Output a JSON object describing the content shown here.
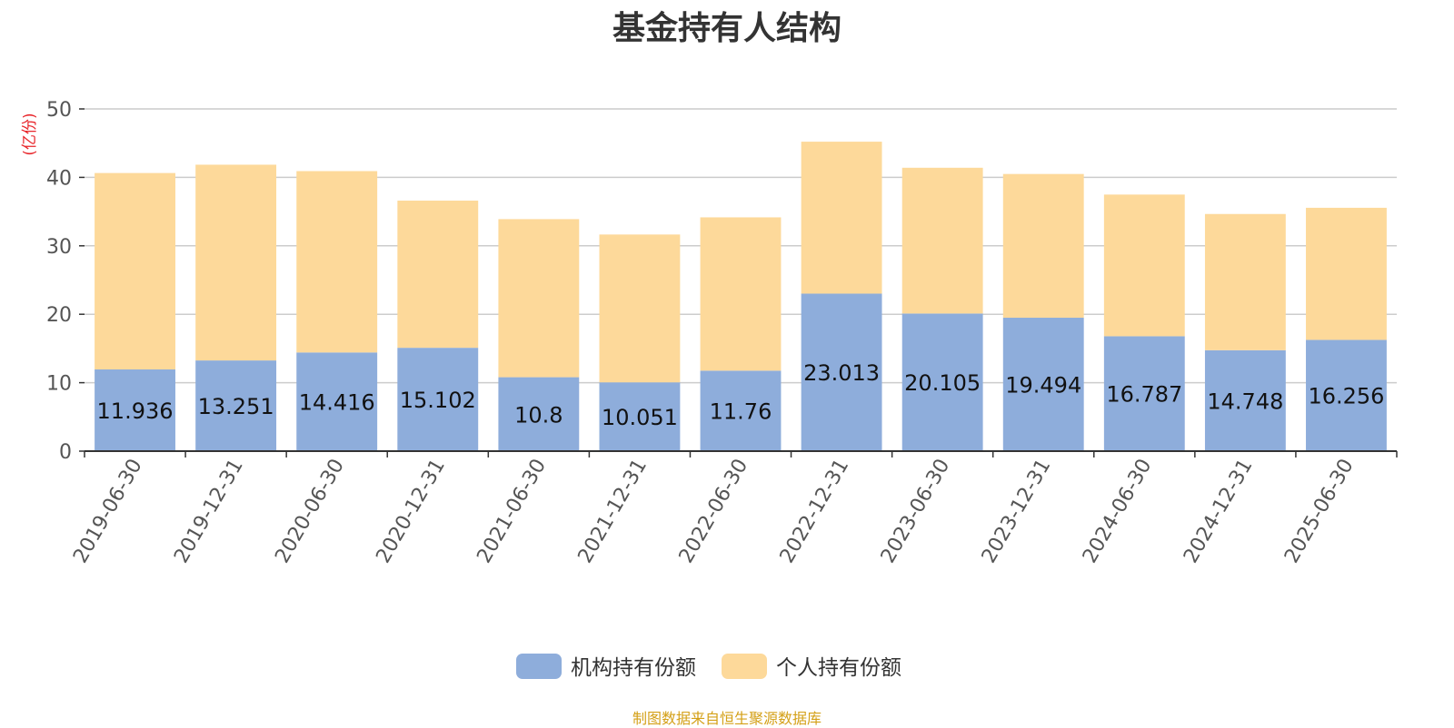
{
  "chart_data": {
    "type": "bar",
    "stacked": true,
    "title": "基金持有人结构",
    "ylabel": "(亿份)",
    "xlabel": "",
    "ylim": [
      0,
      50
    ],
    "yticks": [
      0,
      10,
      20,
      30,
      40,
      50
    ],
    "grid": true,
    "legend_position": "bottom",
    "categories": [
      "2019-06-30",
      "2019-12-31",
      "2020-06-30",
      "2020-12-31",
      "2021-06-30",
      "2021-12-31",
      "2022-06-30",
      "2022-12-31",
      "2023-06-30",
      "2023-12-31",
      "2024-06-30",
      "2024-12-31",
      "2025-06-30"
    ],
    "series": [
      {
        "name": "机构持有份额",
        "color": "#8eaddb",
        "values": [
          11.936,
          13.251,
          14.416,
          15.102,
          10.8,
          10.051,
          11.76,
          23.013,
          20.105,
          19.494,
          16.787,
          14.748,
          16.256
        ],
        "data_labels": [
          "11.936",
          "13.251",
          "14.416",
          "15.102",
          "10.8",
          "10.051",
          "11.76",
          "23.013",
          "20.105",
          "19.494",
          "16.787",
          "14.748",
          "16.256"
        ]
      },
      {
        "name": "个人持有份额",
        "color": "#fdd99a",
        "values": [
          28.7,
          28.6,
          26.5,
          21.5,
          23.1,
          21.6,
          22.4,
          22.2,
          21.3,
          21.0,
          20.7,
          19.9,
          19.3
        ]
      }
    ]
  },
  "source_note": "制图数据来自恒生聚源数据库",
  "colors": {
    "title": "#333333",
    "ylabel": "#e8262b",
    "source": "#d4a017",
    "grid": "#cccccc",
    "axis": "#333333",
    "tick_text": "#555555"
  }
}
